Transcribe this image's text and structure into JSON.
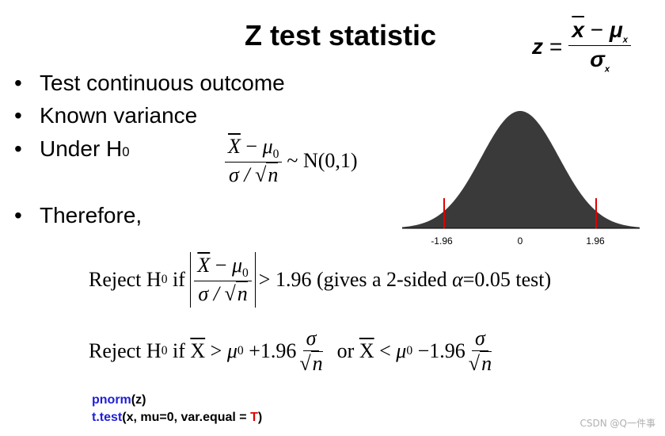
{
  "slide": {
    "title": "Z test statistic",
    "bullets": [
      {
        "text": "Test continuous outcome"
      },
      {
        "text": "Known variance"
      },
      {
        "text": "Under H",
        "sub": "0"
      },
      {
        "text": "Therefore,"
      }
    ]
  },
  "formula_top": {
    "lhs": "z",
    "eq": "=",
    "num_xbar": "x",
    "minus": "−",
    "mu": "μ",
    "mu_sub": "x",
    "den_sigma": "σ",
    "den_sub": "x"
  },
  "formula_h0": {
    "num_x": "X",
    "minus": " − ",
    "mu": "μ",
    "mu_sub": "0",
    "den": "σ / ",
    "den_n": "n",
    "dist": "~ N(0,1)"
  },
  "normal_plot": {
    "ticks": [
      "-1.96",
      "0",
      "1.96"
    ],
    "critical_color": "#e00000",
    "fill_color": "#3a3a3a"
  },
  "reject_line1": {
    "prefix": "Reject H",
    "prefix_sub": "0",
    "if": " if ",
    "num_x": "X",
    "minus": " − ",
    "mu": "μ",
    "mu_sub": "0",
    "den": "σ / ",
    "den_n": "n",
    "suffix": "> 1.96 (gives a 2-sided ",
    "alpha": "α",
    "suffix2": "=0.05 test)"
  },
  "reject_line2": {
    "prefix": "Reject H",
    "prefix_sub": "0",
    "if": " if ",
    "xbar": "X",
    "gt": " > ",
    "mu": "μ",
    "mu_sub": "0",
    "plus_coef": " +1.96",
    "sigma": "σ",
    "n": "n",
    "or": "or ",
    "xbar2": "X",
    "lt": " < ",
    "mu2": "μ",
    "mu2_sub": "0",
    "minus_coef": " −1.96",
    "sigma2": "σ",
    "n2": "n"
  },
  "code": {
    "line1_fn": "pnorm",
    "line1_rest": "(z)",
    "line2_fn": "t.test",
    "line2_rest": "(x, mu=0, var.equal = ",
    "line2_true": "T",
    "line2_end": ")"
  },
  "watermark": "CSDN @Q一件事"
}
